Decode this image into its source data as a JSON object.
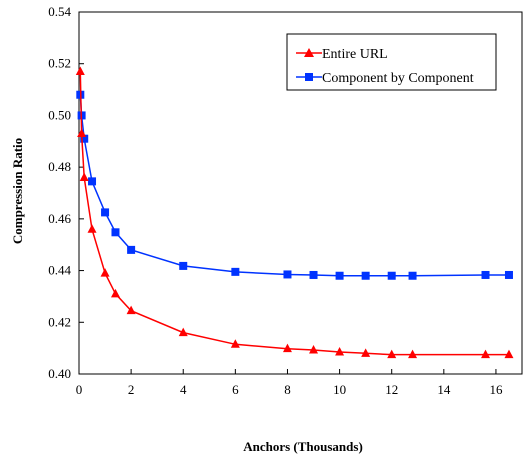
{
  "chart_data": {
    "type": "line",
    "title": "",
    "xlabel": "Anchors (Thousands)",
    "ylabel": "Compression Ratio",
    "xlim": [
      0,
      17
    ],
    "ylim": [
      0.4,
      0.54
    ],
    "xticks": [
      "0",
      "2",
      "4",
      "6",
      "8",
      "10",
      "12",
      "14",
      "16"
    ],
    "yticks": [
      "0.40",
      "0.42",
      "0.44",
      "0.46",
      "0.48",
      "0.50",
      "0.52",
      "0.54"
    ],
    "grid": false,
    "legend_position": "top-right",
    "series": [
      {
        "name": "Entire URL",
        "color": "#ff0000",
        "marker": "triangle",
        "x": [
          0.05,
          0.1,
          0.2,
          0.5,
          1.0,
          1.4,
          2.0,
          4.0,
          6.0,
          8.0,
          9.0,
          10.0,
          11.0,
          12.0,
          12.8,
          15.6,
          16.5
        ],
        "y": [
          0.517,
          0.493,
          0.476,
          0.456,
          0.439,
          0.431,
          0.4245,
          0.416,
          0.4115,
          0.4098,
          0.4093,
          0.4085,
          0.408,
          0.4075,
          0.4075,
          0.4075,
          0.4075
        ]
      },
      {
        "name": "Component by Component",
        "color": "#0033ff",
        "marker": "square",
        "x": [
          0.05,
          0.1,
          0.2,
          0.5,
          1.0,
          1.4,
          2.0,
          4.0,
          6.0,
          8.0,
          9.0,
          10.0,
          11.0,
          12.0,
          12.8,
          15.6,
          16.5
        ],
        "y": [
          0.508,
          0.5,
          0.491,
          0.4745,
          0.4625,
          0.4548,
          0.448,
          0.4418,
          0.4395,
          0.4385,
          0.4383,
          0.438,
          0.438,
          0.438,
          0.438,
          0.4383,
          0.4383
        ]
      }
    ]
  }
}
